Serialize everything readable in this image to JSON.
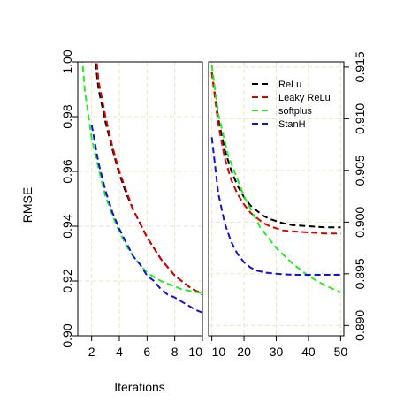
{
  "chart_data": {
    "xlabel": "Iterations",
    "ylabel": "RMSE",
    "grid": true,
    "legend_position": "top-right of right panel",
    "legend": [
      {
        "name": "ReLu",
        "color": "#000000"
      },
      {
        "name": "Leaky ReLu",
        "color": "#dd0000"
      },
      {
        "name": "softplus",
        "color": "#22ee22"
      },
      {
        "name": "StanH",
        "color": "#1111dd"
      }
    ],
    "panels": [
      {
        "type": "line",
        "xlim": [
          1,
          10
        ],
        "ylim": [
          0.9,
          1.0
        ],
        "y_axis_side": "left",
        "x_ticks": [
          {
            "value": 2,
            "label": "2"
          },
          {
            "value": 4,
            "label": "4"
          },
          {
            "value": 6,
            "label": "6"
          },
          {
            "value": 8,
            "label": "8"
          },
          {
            "value": 10,
            "label": "10"
          }
        ],
        "y_ticks": [
          {
            "value": 0.9,
            "label": "0.90"
          },
          {
            "value": 0.92,
            "label": "0.92"
          },
          {
            "value": 0.94,
            "label": "0.94"
          },
          {
            "value": 0.96,
            "label": "0.96"
          },
          {
            "value": 0.98,
            "label": "0.98"
          },
          {
            "value": 1.0,
            "label": "1.00"
          }
        ],
        "series": [
          {
            "name": "ReLu",
            "color": "#000000",
            "points": [
              [
                2.2,
                1.003
              ],
              [
                2.5,
                0.99
              ],
              [
                3,
                0.978
              ],
              [
                3.5,
                0.968
              ],
              [
                4,
                0.959
              ],
              [
                4.5,
                0.952
              ],
              [
                5,
                0.946
              ],
              [
                5.5,
                0.941
              ],
              [
                6,
                0.936
              ],
              [
                6.5,
                0.932
              ],
              [
                7,
                0.928
              ],
              [
                7.5,
                0.925
              ],
              [
                8,
                0.922
              ],
              [
                8.5,
                0.92
              ],
              [
                9,
                0.918
              ],
              [
                9.5,
                0.9165
              ],
              [
                10,
                0.915
              ]
            ]
          },
          {
            "name": "Leaky ReLu",
            "color": "#dd0000",
            "points": [
              [
                2.3,
                1.003
              ],
              [
                2.5,
                0.993
              ],
              [
                3,
                0.98
              ],
              [
                3.5,
                0.969
              ],
              [
                4,
                0.96
              ],
              [
                4.5,
                0.953
              ],
              [
                5,
                0.946
              ],
              [
                5.5,
                0.941
              ],
              [
                6,
                0.936
              ],
              [
                6.5,
                0.932
              ],
              [
                7,
                0.928
              ],
              [
                7.5,
                0.925
              ],
              [
                8,
                0.922
              ],
              [
                8.5,
                0.92
              ],
              [
                9,
                0.918
              ],
              [
                9.5,
                0.9165
              ],
              [
                10,
                0.9155
              ]
            ]
          },
          {
            "name": "softplus",
            "color": "#22ee22",
            "points": [
              [
                1.3,
                1.002
              ],
              [
                1.5,
                0.99
              ],
              [
                2,
                0.972
              ],
              [
                2.5,
                0.961
              ],
              [
                3,
                0.951
              ],
              [
                3.5,
                0.944
              ],
              [
                4,
                0.938
              ],
              [
                4.5,
                0.933
              ],
              [
                5,
                0.929
              ],
              [
                5.5,
                0.926
              ],
              [
                6,
                0.923
              ],
              [
                6.5,
                0.9215
              ],
              [
                7,
                0.92
              ],
              [
                7.5,
                0.919
              ],
              [
                8,
                0.918
              ],
              [
                8.5,
                0.917
              ],
              [
                9,
                0.9165
              ],
              [
                9.5,
                0.916
              ],
              [
                10,
                0.9155
              ]
            ]
          },
          {
            "name": "StanH",
            "color": "#1111dd",
            "points": [
              [
                2,
                0.977
              ],
              [
                2.5,
                0.963
              ],
              [
                3,
                0.953
              ],
              [
                3.5,
                0.945
              ],
              [
                4,
                0.939
              ],
              [
                4.5,
                0.934
              ],
              [
                5,
                0.929
              ],
              [
                5.5,
                0.926
              ],
              [
                6,
                0.922
              ],
              [
                6.5,
                0.92
              ],
              [
                7,
                0.917
              ],
              [
                7.5,
                0.915
              ],
              [
                8,
                0.914
              ],
              [
                8.5,
                0.9125
              ],
              [
                9,
                0.911
              ],
              [
                9.5,
                0.9095
              ],
              [
                10,
                0.9085
              ]
            ]
          }
        ]
      },
      {
        "type": "line",
        "xlim": [
          9,
          51
        ],
        "ylim": [
          0.889,
          0.9155
        ],
        "y_axis_side": "right",
        "x_ticks": [
          {
            "value": 10,
            "label": "10"
          },
          {
            "value": 20,
            "label": "20"
          },
          {
            "value": 30,
            "label": "30"
          },
          {
            "value": 40,
            "label": "40"
          },
          {
            "value": 50,
            "label": "50"
          }
        ],
        "y_ticks": [
          {
            "value": 0.89,
            "label": "0.890"
          },
          {
            "value": 0.895,
            "label": "0.895"
          },
          {
            "value": 0.9,
            "label": "0.900"
          },
          {
            "value": 0.905,
            "label": "0.905"
          },
          {
            "value": 0.91,
            "label": "0.910"
          },
          {
            "value": 0.915,
            "label": "0.915"
          }
        ],
        "series": [
          {
            "name": "ReLu",
            "color": "#000000",
            "points": [
              [
                10,
                0.9145
              ],
              [
                12,
                0.91
              ],
              [
                14,
                0.907
              ],
              [
                16,
                0.905
              ],
              [
                18,
                0.9035
              ],
              [
                20,
                0.9024
              ],
              [
                22,
                0.9016
              ],
              [
                24,
                0.9011
              ],
              [
                26,
                0.9006
              ],
              [
                28,
                0.9003
              ],
              [
                30,
                0.9001
              ],
              [
                32,
                0.8999
              ],
              [
                35,
                0.8997
              ],
              [
                40,
                0.8996
              ],
              [
                45,
                0.8995
              ],
              [
                50,
                0.8995
              ]
            ]
          },
          {
            "name": "Leaky ReLu",
            "color": "#dd0000",
            "points": [
              [
                10,
                0.9145
              ],
              [
                12,
                0.9095
              ],
              [
                14,
                0.9062
              ],
              [
                16,
                0.9041
              ],
              [
                18,
                0.9027
              ],
              [
                20,
                0.9017
              ],
              [
                22,
                0.9009
              ],
              [
                24,
                0.9004
              ],
              [
                26,
                0.8999
              ],
              [
                28,
                0.8996
              ],
              [
                30,
                0.8994
              ],
              [
                32,
                0.8992
              ],
              [
                35,
                0.8991
              ],
              [
                40,
                0.899
              ],
              [
                45,
                0.8989
              ],
              [
                50,
                0.8989
              ]
            ]
          },
          {
            "name": "softplus",
            "color": "#22ee22",
            "points": [
              [
                10,
                0.9152
              ],
              [
                12,
                0.9105
              ],
              [
                15,
                0.9065
              ],
              [
                20,
                0.9025
              ],
              [
                25,
                0.8995
              ],
              [
                30,
                0.8975
              ],
              [
                35,
                0.896
              ],
              [
                40,
                0.8948
              ],
              [
                45,
                0.8939
              ],
              [
                50,
                0.8932
              ]
            ]
          },
          {
            "name": "StanH",
            "color": "#1111dd",
            "points": [
              [
                10,
                0.9082
              ],
              [
                12,
                0.9028
              ],
              [
                14,
                0.8999
              ],
              [
                16,
                0.8981
              ],
              [
                18,
                0.8969
              ],
              [
                20,
                0.8961
              ],
              [
                22,
                0.8956
              ],
              [
                24,
                0.8953
              ],
              [
                27,
                0.8951
              ],
              [
                30,
                0.895
              ],
              [
                35,
                0.8949
              ],
              [
                40,
                0.8949
              ],
              [
                45,
                0.8949
              ],
              [
                50,
                0.8949
              ]
            ]
          }
        ]
      }
    ]
  }
}
